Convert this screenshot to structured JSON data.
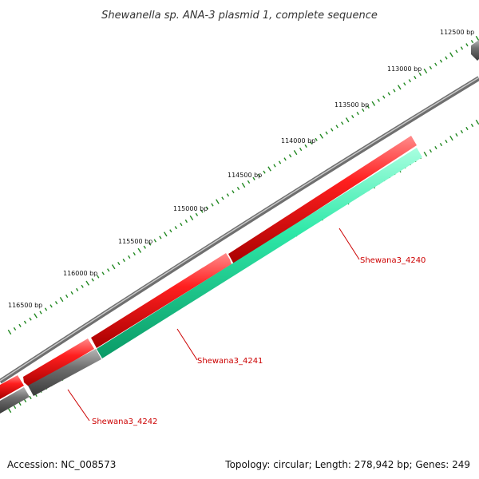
{
  "title": "Shewanella sp. ANA-3 plasmid 1, complete sequence",
  "ticks": [
    "112500 bp",
    "113000 bp",
    "113500 bp",
    "114000 bp",
    "114500 bp",
    "115000 bp",
    "115500 bp",
    "116000 bp",
    "116500 bp"
  ],
  "genes": [
    {
      "label": "Shewana3_4240"
    },
    {
      "label": "Shewana3_4241"
    },
    {
      "label": "Shewana3_4242"
    }
  ],
  "colors": {
    "forward_cds": "#ff1f1f",
    "reverse_cds": "#2ee8a8",
    "other_feature": "#6f6f6f",
    "backbone": "#8a8a8a",
    "ticks": "#228822",
    "gene_label": "#cc0000"
  },
  "footer": {
    "accession": "Accession: NC_008573",
    "summary": "Topology: circular; Length: 278,942 bp; Genes: 249"
  }
}
